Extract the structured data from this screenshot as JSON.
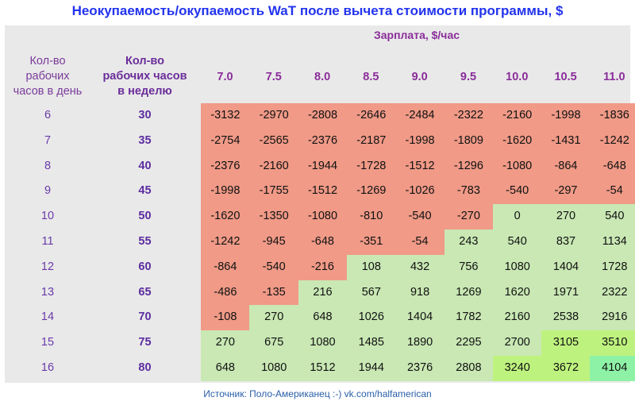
{
  "title": "Неокупаемость/окупаемость WaT после вычета стоимости программы, $",
  "header": {
    "x_label": "Зарплата, $/час",
    "col1": [
      "Кол-во",
      "рабочих",
      "часов в день"
    ],
    "col2": [
      "Кол-во",
      "рабочих часов",
      "в неделю"
    ]
  },
  "source": "Источник: Поло-Американец :-) vk.com/halfamerican",
  "colors": {
    "negative": "#f09a87",
    "positive": "#c9e8b4",
    "positive_bright": "#bef27e",
    "positive_max": "#8ef2a6"
  },
  "chart_data": {
    "type": "table",
    "title": "Неокупаемость/окупаемость WaT после вычета стоимости программы, $",
    "xlabel": "Зарплата, $/час",
    "ylabel": "Кол-во рабочих часов в день / в неделю",
    "wages": [
      "7.0",
      "7.5",
      "8.0",
      "8.5",
      "9.0",
      "9.5",
      "10.0",
      "10.5",
      "11.0"
    ],
    "hours_per_day": [
      6,
      7,
      8,
      9,
      10,
      11,
      12,
      13,
      14,
      15,
      16
    ],
    "hours_per_week": [
      30,
      35,
      40,
      45,
      50,
      55,
      60,
      65,
      70,
      75,
      80
    ],
    "values": [
      [
        -3132,
        -2970,
        -2808,
        -2646,
        -2484,
        -2322,
        -2160,
        -1998,
        -1836
      ],
      [
        -2754,
        -2565,
        -2376,
        -2187,
        -1998,
        -1809,
        -1620,
        -1431,
        -1242
      ],
      [
        -2376,
        -2160,
        -1944,
        -1728,
        -1512,
        -1296,
        -1080,
        -864,
        -648
      ],
      [
        -1998,
        -1755,
        -1512,
        -1269,
        -1026,
        -783,
        -540,
        -297,
        -54
      ],
      [
        -1620,
        -1350,
        -1080,
        -810,
        -540,
        -270,
        0,
        270,
        540
      ],
      [
        -1242,
        -945,
        -648,
        -351,
        -54,
        243,
        540,
        837,
        1134
      ],
      [
        -864,
        -540,
        -216,
        108,
        432,
        756,
        1080,
        1404,
        1728
      ],
      [
        -486,
        -135,
        216,
        567,
        918,
        1269,
        1620,
        1971,
        2322
      ],
      [
        -108,
        270,
        648,
        1026,
        1404,
        1782,
        2160,
        2538,
        2916
      ],
      [
        270,
        675,
        1080,
        1485,
        1890,
        2295,
        2700,
        3105,
        3510
      ],
      [
        648,
        1080,
        1512,
        1944,
        2376,
        2808,
        3240,
        3672,
        4104
      ]
    ]
  }
}
